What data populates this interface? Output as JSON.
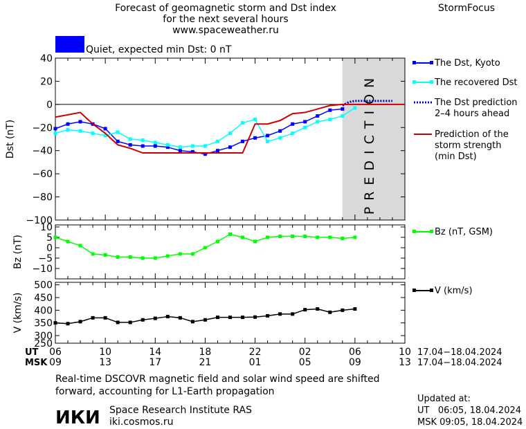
{
  "header": {
    "title_line1": "Forecast of geomagnetic storm and Dst index",
    "title_line2": "for the next several hours",
    "title_line3": "www.spaceweather.ru",
    "brand": "StormFocus"
  },
  "status": {
    "color": "#0000ff",
    "text": "Quiet, expected min Dst: 0 nT"
  },
  "colors": {
    "dst_kyoto": "#0000ff",
    "dst_recovered": "#00ffff",
    "dst_prediction": "#0000cc",
    "storm_strength": "#cc0000",
    "bz": "#00ff00",
    "v": "#000000",
    "prediction_zone": "#d9d9d9"
  },
  "chart_data": [
    {
      "type": "line",
      "panel": "dst",
      "ylabel": "Dst (nT)",
      "ylim": [
        -100,
        40
      ],
      "yticks": [
        "40",
        "20",
        "0",
        "−20",
        "−40",
        "−60",
        "−80",
        "−100"
      ],
      "ytick_values": [
        40,
        20,
        0,
        -20,
        -40,
        -60,
        -80,
        -100
      ],
      "xlim": [
        6,
        34
      ],
      "zero_line": 0,
      "prediction_zone": [
        29,
        34
      ],
      "prediction_label": "PREDICTION",
      "series": [
        {
          "name": "The Dst, Kyoto",
          "key": "kyoto",
          "style": "line-square",
          "x": [
            6,
            7,
            8,
            9,
            10,
            11,
            12,
            13,
            14,
            15,
            16,
            17,
            18,
            19,
            20,
            21,
            22,
            23,
            24,
            25,
            26,
            27,
            28,
            29
          ],
          "values": [
            -21,
            -17,
            -15,
            -17,
            -21,
            -32,
            -35,
            -36,
            -36,
            -37,
            -40,
            -41,
            -43,
            -40,
            -37,
            -32,
            -29,
            -27,
            -23,
            -17,
            -15,
            -10,
            -5,
            -4
          ]
        },
        {
          "name": "The recovered Dst",
          "key": "recovered",
          "style": "line-square",
          "x": [
            6,
            7,
            8,
            9,
            10,
            11,
            12,
            13,
            14,
            15,
            16,
            17,
            18,
            19,
            20,
            21,
            22,
            23,
            24,
            25,
            26,
            27,
            28,
            29,
            30
          ],
          "values": [
            -25,
            -22,
            -23,
            -25,
            -27,
            -24,
            -30,
            -31,
            -33,
            -35,
            -37,
            -36,
            -36,
            -32,
            -25,
            -16,
            -13,
            -32,
            -29,
            -25,
            -20,
            -15,
            -13,
            -10,
            -3
          ]
        },
        {
          "name": "The Dst prediction 2–4 hours ahead",
          "key": "prediction",
          "style": "dotted",
          "x": [
            29,
            29.5,
            30,
            31,
            32,
            33
          ],
          "values": [
            -1,
            2,
            3,
            3,
            3,
            3
          ]
        },
        {
          "name": "Prediction of the storm strength (min Dst)",
          "key": "storm",
          "style": "line",
          "x": [
            6,
            8,
            9,
            10,
            11,
            12,
            13,
            14,
            15,
            16,
            17,
            18,
            19,
            20,
            21,
            22,
            23,
            24,
            25,
            26,
            27,
            28,
            29,
            30,
            31,
            32,
            33,
            34
          ],
          "values": [
            -11,
            -7,
            -17,
            -25,
            -35,
            -38,
            -42,
            -42,
            -42,
            -42,
            -42,
            -42,
            -42,
            -42,
            -42,
            -17,
            -17,
            -14,
            -8,
            -7,
            -4,
            -1,
            0,
            0,
            0,
            0,
            0,
            0
          ]
        }
      ]
    },
    {
      "type": "line",
      "panel": "bz",
      "ylabel": "Bz (nT)",
      "ylim": [
        -15,
        11
      ],
      "yticks": [
        "10",
        "5",
        "0",
        "−5",
        "−10"
      ],
      "ytick_values": [
        10,
        5,
        0,
        -5,
        -10
      ],
      "xlim": [
        6,
        34
      ],
      "series": [
        {
          "name": "Bz (nT, GSM)",
          "key": "bz",
          "style": "line-square",
          "x": [
            6,
            7,
            8,
            9,
            10,
            11,
            12,
            13,
            14,
            15,
            16,
            17,
            18,
            19,
            20,
            21,
            22,
            23,
            24,
            25,
            26,
            27,
            28,
            29,
            30
          ],
          "values": [
            5,
            3,
            1,
            -3,
            -3.5,
            -4.5,
            -4.5,
            -5,
            -5,
            -4,
            -3,
            -3,
            0,
            3,
            6.5,
            5,
            3,
            5,
            5.5,
            5.5,
            5.5,
            5,
            5,
            4.5,
            5
          ]
        }
      ]
    },
    {
      "type": "line",
      "panel": "v",
      "ylabel": "V (km/s)",
      "ylim": [
        270,
        510
      ],
      "yticks": [
        "500",
        "450",
        "400",
        "350",
        "300",
        "250"
      ],
      "ytick_values": [
        500,
        450,
        400,
        350,
        300,
        250
      ],
      "xlim": [
        6,
        34
      ],
      "series": [
        {
          "name": "V (km/s)",
          "key": "v",
          "style": "line-square",
          "x": [
            6,
            7,
            8,
            9,
            10,
            11,
            12,
            13,
            14,
            15,
            16,
            17,
            18,
            19,
            20,
            21,
            22,
            23,
            24,
            25,
            26,
            27,
            28,
            29,
            30
          ],
          "values": [
            350,
            347,
            355,
            370,
            370,
            352,
            352,
            362,
            368,
            375,
            370,
            355,
            362,
            372,
            372,
            372,
            373,
            378,
            385,
            385,
            402,
            405,
            392,
            400,
            405
          ]
        }
      ]
    }
  ],
  "time_axis": {
    "ut_label": "UT",
    "msk_label": "MSK",
    "ticks_x": [
      6,
      10,
      14,
      18,
      22,
      26,
      30,
      34
    ],
    "ut_ticks": [
      "06",
      "10",
      "14",
      "18",
      "22",
      "02",
      "06",
      "10"
    ],
    "msk_ticks": [
      "09",
      "13",
      "17",
      "21",
      "01",
      "05",
      "09",
      "13"
    ],
    "ut_range": "17.04−18.04.2024",
    "msk_range": "17.04−18.04.2024"
  },
  "footer": {
    "note_line1": "Real-time DSCOVR magnetic field and solar wind speed are shifted",
    "note_line2": "forward, accounting for L1-Earth propagation",
    "logo_text": "ИКИ",
    "institute": "Space Research Institute RAS",
    "website": "iki.cosmos.ru",
    "updated_label": "Updated at:",
    "updated_ut": "UT   06:05, 18.04.2024",
    "updated_msk": "MSK 09:05, 18.04.2024"
  }
}
